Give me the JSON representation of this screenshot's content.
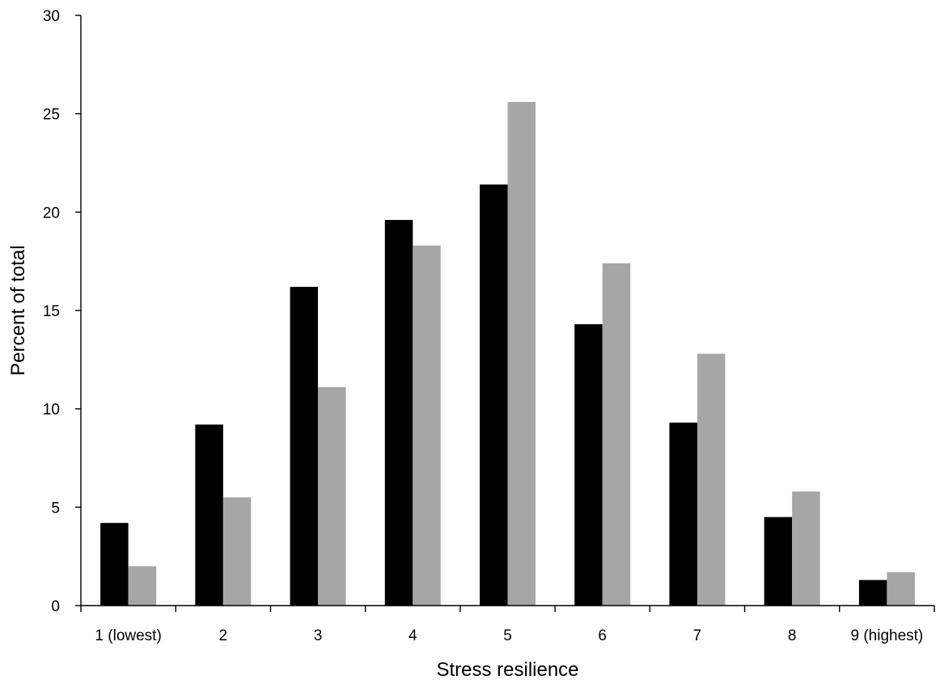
{
  "chart_data": {
    "type": "bar",
    "xlabel": "Stress resilience",
    "ylabel": "Percent of total",
    "ylim": [
      0,
      30
    ],
    "yticks": [
      0,
      5,
      10,
      15,
      20,
      25,
      30
    ],
    "categories": [
      "1 (lowest)",
      "2",
      "3",
      "4",
      "5",
      "6",
      "7",
      "8",
      "9 (highest)"
    ],
    "series": [
      {
        "color": "#000000",
        "values": [
          4.2,
          9.2,
          16.2,
          19.6,
          21.4,
          14.3,
          9.3,
          4.5,
          1.3
        ]
      },
      {
        "color": "#a6a6a6",
        "values": [
          2.0,
          5.5,
          11.1,
          18.3,
          25.6,
          17.4,
          12.8,
          5.8,
          1.7
        ]
      }
    ],
    "grid": false,
    "legend": "none"
  }
}
